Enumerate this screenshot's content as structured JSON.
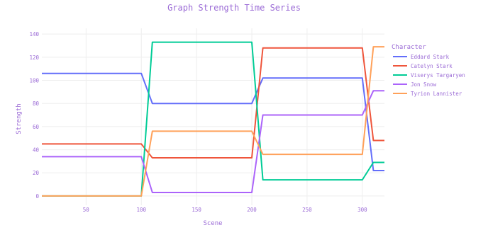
{
  "chart_data": {
    "type": "line",
    "title": "Graph Strength Time Series",
    "xlabel": "Scene",
    "ylabel": "Strength",
    "xlim": [
      10,
      320
    ],
    "ylim": [
      -8,
      145
    ],
    "x_ticks": [
      50,
      100,
      150,
      200,
      250,
      300
    ],
    "y_ticks": [
      0,
      20,
      40,
      60,
      80,
      100,
      120,
      140
    ],
    "grid": true,
    "legend": {
      "title": "Character",
      "placement": "right"
    },
    "series": [
      {
        "name": "Eddard Stark",
        "color": "#636efa",
        "points": [
          [
            10,
            106
          ],
          [
            100,
            106
          ],
          [
            110,
            80
          ],
          [
            200,
            80
          ],
          [
            210,
            102
          ],
          [
            300,
            102
          ],
          [
            310,
            22
          ],
          [
            320,
            22
          ]
        ]
      },
      {
        "name": "Catelyn Stark",
        "color": "#ef553b",
        "points": [
          [
            10,
            45
          ],
          [
            100,
            45
          ],
          [
            110,
            33
          ],
          [
            200,
            33
          ],
          [
            210,
            128
          ],
          [
            300,
            128
          ],
          [
            310,
            48
          ],
          [
            320,
            48
          ]
        ]
      },
      {
        "name": "Viserys Targaryen",
        "color": "#00cc96",
        "points": [
          [
            10,
            0
          ],
          [
            100,
            0
          ],
          [
            110,
            133
          ],
          [
            200,
            133
          ],
          [
            210,
            14
          ],
          [
            300,
            14
          ],
          [
            310,
            29
          ],
          [
            320,
            29
          ]
        ]
      },
      {
        "name": "Jon Snow",
        "color": "#ab63fa",
        "points": [
          [
            10,
            34
          ],
          [
            100,
            34
          ],
          [
            110,
            3
          ],
          [
            200,
            3
          ],
          [
            210,
            70
          ],
          [
            300,
            70
          ],
          [
            310,
            91
          ],
          [
            320,
            91
          ]
        ]
      },
      {
        "name": "Tyrion Lannister",
        "color": "#ffa15a",
        "points": [
          [
            10,
            0
          ],
          [
            100,
            0
          ],
          [
            110,
            56
          ],
          [
            200,
            56
          ],
          [
            210,
            36
          ],
          [
            300,
            36
          ],
          [
            310,
            129
          ],
          [
            320,
            129
          ]
        ]
      }
    ]
  },
  "style": {
    "text_color": "#9b6bd6",
    "grid_color": "#eeeeee"
  }
}
